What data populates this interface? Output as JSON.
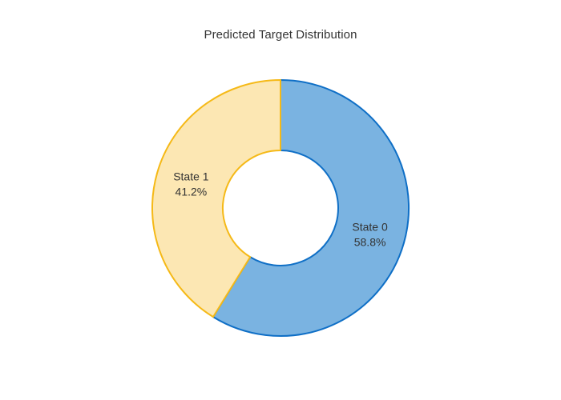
{
  "chart_data": {
    "type": "pie",
    "hole": true,
    "title": "Predicted Target Distribution",
    "slices": [
      {
        "label": "State 0",
        "percent_label": "58.8%",
        "value": 58.8,
        "fill": "#7ab3e1",
        "stroke": "#0f6fc6"
      },
      {
        "label": "State 1",
        "percent_label": "41.2%",
        "value": 41.2,
        "fill": "#fce7b3",
        "stroke": "#f5b917"
      }
    ],
    "legend": "none"
  }
}
